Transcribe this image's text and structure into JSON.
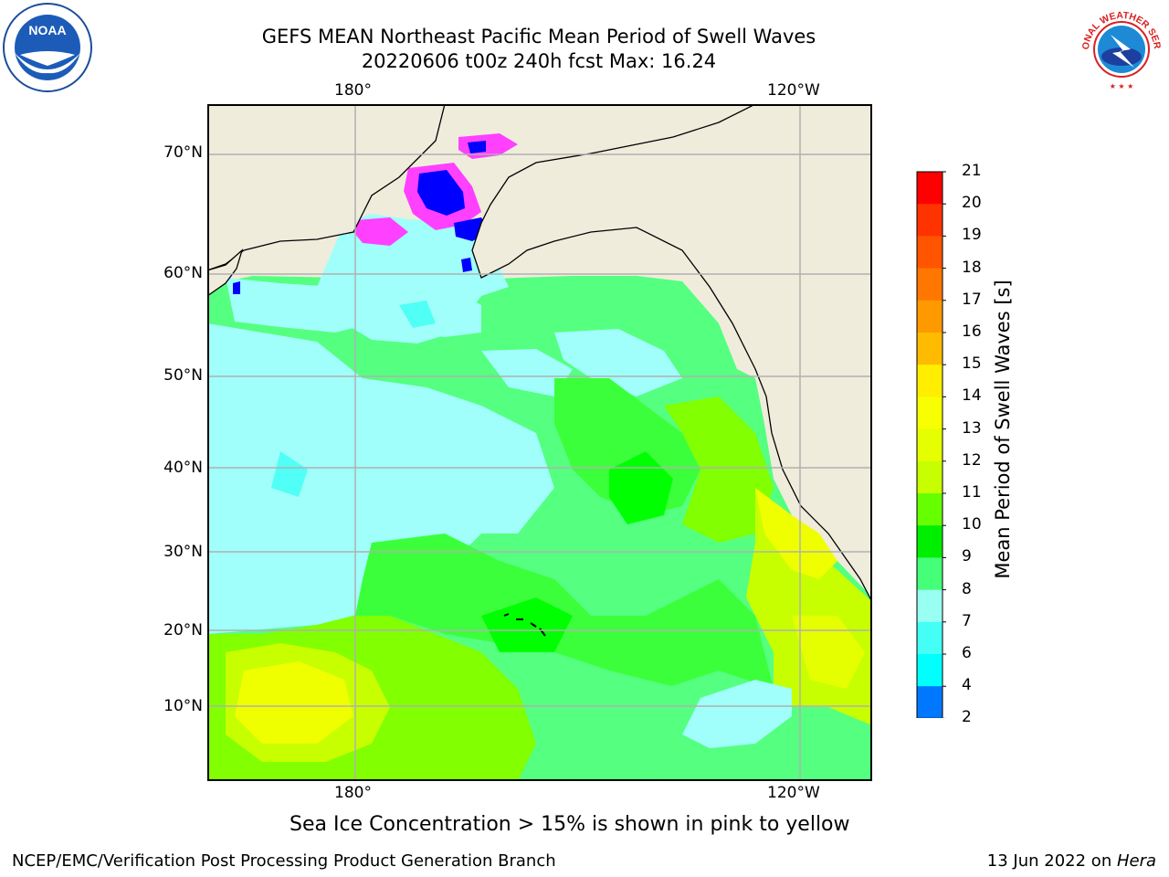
{
  "header": {
    "title_line1": "GEFS MEAN Northeast Pacific Mean Period of Swell Waves",
    "title_line2": "20220606 t00z 240h fcst   Max: 16.24"
  },
  "map": {
    "top_lon_labels": [
      "180°",
      "120°W"
    ],
    "bottom_lon_labels": [
      "180°",
      "120°W"
    ],
    "lat_labels": [
      "70°N",
      "60°N",
      "50°N",
      "40°N",
      "30°N",
      "20°N",
      "10°N"
    ],
    "land_color": "#efecdc",
    "field_colors": {
      "cyan_light": "#a0fffa",
      "cyan": "#50fff5",
      "green_light": "#55ff80",
      "green": "#3cff3c",
      "green_bright": "#00ff00",
      "lime": "#82ff00",
      "yellow_green": "#c8ff00",
      "yellow": "#f0ff00",
      "blue": "#0000ff",
      "magenta": "#ff40ff"
    }
  },
  "colorbar": {
    "label": "Mean Period of Swell Waves [s]",
    "ticks": [
      "21",
      "20",
      "19",
      "18",
      "17",
      "16",
      "15",
      "14",
      "13",
      "12",
      "11",
      "10",
      "9",
      "8",
      "7",
      "6",
      "4",
      "2"
    ],
    "colors_top_to_bottom": [
      "#ff0000",
      "#ff3300",
      "#ff5500",
      "#ff7700",
      "#ff9900",
      "#ffbb00",
      "#ffee00",
      "#f7ff00",
      "#e6ff00",
      "#c8ff00",
      "#66ff00",
      "#00ee00",
      "#44ff77",
      "#99fff2",
      "#44fff6",
      "#00ffff",
      "#0077ff"
    ],
    "extend_color": "#0000ee"
  },
  "notes": {
    "sea_ice": "Sea Ice Concentration > 15% is shown in pink to yellow"
  },
  "footer": {
    "left": "NCEP/EMC/Verification Post Processing Product Generation Branch",
    "right_date": "13 Jun 2022 on ",
    "right_host": "Hera"
  },
  "logos": {
    "noaa_text": "NOAA",
    "nws_text": "NATIONAL WEATHER SERVICE"
  }
}
